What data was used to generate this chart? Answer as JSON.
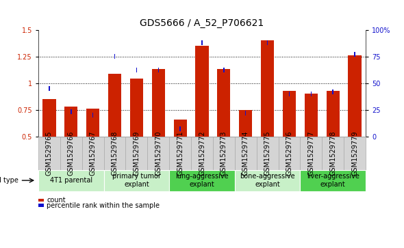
{
  "title": "GDS5666 / A_52_P706621",
  "samples": [
    "GSM1529765",
    "GSM1529766",
    "GSM1529767",
    "GSM1529768",
    "GSM1529769",
    "GSM1529770",
    "GSM1529771",
    "GSM1529772",
    "GSM1529773",
    "GSM1529774",
    "GSM1529775",
    "GSM1529776",
    "GSM1529777",
    "GSM1529778",
    "GSM1529779"
  ],
  "red_values": [
    0.85,
    0.78,
    0.76,
    1.09,
    1.04,
    1.13,
    0.66,
    1.35,
    1.13,
    0.75,
    1.4,
    0.93,
    0.9,
    0.93,
    1.26
  ],
  "blue_pct": [
    45,
    23,
    20,
    75,
    62,
    62,
    7,
    88,
    62,
    22,
    88,
    40,
    40,
    42,
    77
  ],
  "cell_types": [
    {
      "label": "4T1 parental",
      "start": 0,
      "end": 3,
      "color": "#c8f0c8"
    },
    {
      "label": "primary tumor\nexplant",
      "start": 3,
      "end": 6,
      "color": "#c8f0c8"
    },
    {
      "label": "lung-aggressive\nexplant",
      "start": 6,
      "end": 9,
      "color": "#50d050"
    },
    {
      "label": "bone-aggressive\nexplant",
      "start": 9,
      "end": 12,
      "color": "#c8f0c8"
    },
    {
      "label": "liver-aggressive\nexplant",
      "start": 12,
      "end": 15,
      "color": "#50d050"
    }
  ],
  "ylim": [
    0.5,
    1.5
  ],
  "yticks_left": [
    0.5,
    0.75,
    1.0,
    1.25,
    1.5
  ],
  "grid_lines": [
    0.75,
    1.0,
    1.25
  ],
  "yticks_right_vals": [
    0,
    25,
    50,
    75,
    100
  ],
  "yticks_right_labels": [
    "0",
    "25",
    "50",
    "75",
    "100%"
  ],
  "bar_color": "#cc2200",
  "blue_color": "#1111cc",
  "bg_color": "#ffffff",
  "title_fontsize": 10,
  "tick_fontsize": 7,
  "cell_type_fontsize": 7,
  "legend_fontsize": 7,
  "sample_box_color": "#d4d4d4",
  "sample_box_edge": "#aaaaaa"
}
